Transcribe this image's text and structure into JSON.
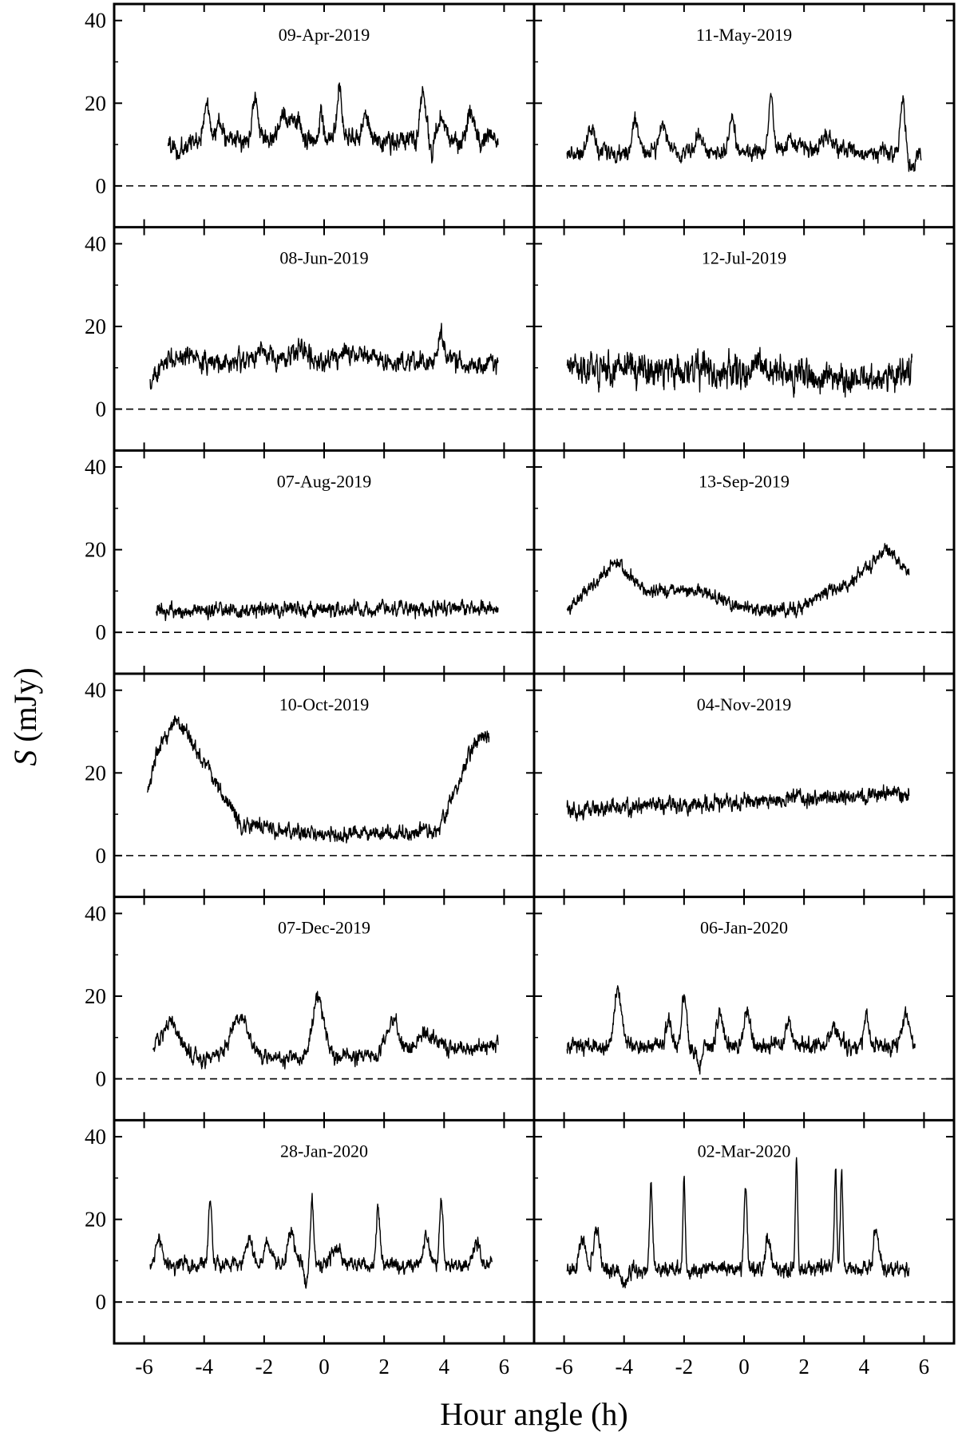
{
  "figure": {
    "ylabel_italic": "S",
    "ylabel_rest": " (mJy)",
    "xlabel": "Hour angle (h)"
  },
  "chart_data": {
    "type": "line",
    "layout": "6 rows x 2 columns, shared axes",
    "xlabel": "Hour angle (h)",
    "ylabel": "S (mJy)",
    "xlim": [
      -7,
      7
    ],
    "ylim": [
      -10,
      44
    ],
    "x_ticks": [
      -6,
      -4,
      -2,
      0,
      2,
      4,
      6
    ],
    "y_ticks": [
      0,
      20,
      40
    ],
    "zero_reference": "dashed line at S = 0",
    "colors": {
      "line": "#000000",
      "frame": "#000000"
    },
    "panels": [
      {
        "label": "09-Apr-2019",
        "x_range": [
          -5.2,
          5.8
        ],
        "baseline": 11,
        "noise": 1.8,
        "trend": [],
        "peaks": [
          [
            -3.9,
            8,
            0.12
          ],
          [
            -3.5,
            4,
            0.1
          ],
          [
            -2.3,
            10,
            0.1
          ],
          [
            -1.3,
            5,
            0.2
          ],
          [
            -0.9,
            4,
            0.15
          ],
          [
            0.5,
            12,
            0.08
          ],
          [
            -0.1,
            6,
            0.08
          ],
          [
            1.4,
            5,
            0.15
          ],
          [
            3.3,
            11,
            0.1
          ],
          [
            3.9,
            5,
            0.15
          ],
          [
            4.9,
            7,
            0.12
          ],
          [
            -4.8,
            -3,
            0.2
          ],
          [
            3.6,
            -5,
            0.06
          ]
        ]
      },
      {
        "label": "11-May-2019",
        "x_range": [
          -5.9,
          5.9
        ],
        "baseline": 8,
        "noise": 1.5,
        "trend": [],
        "peaks": [
          [
            -5.1,
            6,
            0.12
          ],
          [
            -3.6,
            7,
            0.12
          ],
          [
            -2.7,
            6,
            0.15
          ],
          [
            -1.5,
            4,
            0.15
          ],
          [
            -0.4,
            9,
            0.08
          ],
          [
            0.9,
            13,
            0.08
          ],
          [
            1.6,
            2,
            0.4
          ],
          [
            2.8,
            4,
            0.2
          ],
          [
            5.3,
            12,
            0.08
          ],
          [
            5.6,
            -3,
            0.15
          ]
        ]
      },
      {
        "label": "08-Jun-2019",
        "x_range": [
          -5.8,
          5.8
        ],
        "baseline": 11,
        "noise": 1.8,
        "trend": [
          [
            -5.8,
            6
          ],
          [
            -5.3,
            11
          ],
          [
            5.8,
            11
          ]
        ],
        "peaks": [
          [
            -4.6,
            2,
            0.4
          ],
          [
            -2,
            3,
            0.3
          ],
          [
            -0.8,
            4,
            0.3
          ],
          [
            0.6,
            2,
            0.4
          ],
          [
            1.4,
            2,
            0.4
          ],
          [
            3.9,
            6,
            0.12
          ]
        ]
      },
      {
        "label": "12-Jul-2019",
        "x_range": [
          -5.9,
          5.6
        ],
        "baseline": 9,
        "noise": 2.8,
        "trend": [
          [
            -5.9,
            10
          ],
          [
            0,
            9
          ],
          [
            0.5,
            12
          ],
          [
            1,
            9
          ],
          [
            3,
            7
          ],
          [
            5.6,
            9
          ]
        ],
        "peaks": []
      },
      {
        "label": "07-Aug-2019",
        "x_range": [
          -5.6,
          5.8
        ],
        "baseline": 5,
        "noise": 1.3,
        "trend": [
          [
            -5.6,
            5
          ],
          [
            5.8,
            6
          ]
        ],
        "peaks": []
      },
      {
        "label": "13-Sep-2019",
        "x_range": [
          -5.9,
          5.5
        ],
        "baseline": 10,
        "noise": 1.2,
        "trend": [
          [
            -5.9,
            5
          ],
          [
            -4.3,
            17
          ],
          [
            -3.3,
            10
          ],
          [
            -1.5,
            10
          ],
          [
            0,
            6
          ],
          [
            1.5,
            5
          ],
          [
            3.5,
            12
          ],
          [
            4.8,
            20
          ],
          [
            5.5,
            14
          ]
        ],
        "peaks": []
      },
      {
        "label": "10-Oct-2019",
        "x_range": [
          -5.9,
          5.5
        ],
        "baseline": 6,
        "noise": 1.4,
        "trend": [
          [
            -5.9,
            14
          ],
          [
            -5.6,
            24
          ],
          [
            -5,
            32
          ],
          [
            -4.6,
            30
          ],
          [
            -3.5,
            16
          ],
          [
            -2.8,
            8
          ],
          [
            -1.5,
            6
          ],
          [
            0,
            5
          ],
          [
            2,
            5
          ],
          [
            3.8,
            6
          ],
          [
            4.5,
            18
          ],
          [
            5,
            27
          ],
          [
            5.5,
            29
          ]
        ],
        "peaks": []
      },
      {
        "label": "04-Nov-2019",
        "x_range": [
          -5.9,
          5.5
        ],
        "baseline": 12,
        "noise": 1.5,
        "trend": [
          [
            -5.9,
            11
          ],
          [
            0,
            13
          ],
          [
            5.5,
            15
          ]
        ],
        "peaks": []
      },
      {
        "label": "07-Dec-2019",
        "x_range": [
          -5.7,
          5.8
        ],
        "baseline": 7,
        "noise": 1.4,
        "trend": [
          [
            -5.7,
            6
          ],
          [
            -4,
            5
          ],
          [
            0,
            5
          ],
          [
            5.8,
            8
          ]
        ],
        "peaks": [
          [
            -5.1,
            8,
            0.3
          ],
          [
            -2.8,
            10,
            0.3
          ],
          [
            -0.2,
            14,
            0.2
          ],
          [
            2.3,
            8,
            0.2
          ],
          [
            3.4,
            4,
            0.3
          ]
        ]
      },
      {
        "label": "06-Jan-2020",
        "x_range": [
          -5.9,
          5.7
        ],
        "baseline": 8,
        "noise": 1.5,
        "trend": [],
        "peaks": [
          [
            -4.2,
            14,
            0.12
          ],
          [
            -2.5,
            6,
            0.1
          ],
          [
            -2,
            12,
            0.08
          ],
          [
            -0.8,
            8,
            0.1
          ],
          [
            0.1,
            8,
            0.1
          ],
          [
            1.5,
            6,
            0.1
          ],
          [
            3.0,
            4,
            0.15
          ],
          [
            4.1,
            6,
            0.1
          ],
          [
            5.4,
            7,
            0.12
          ],
          [
            -1.5,
            -5,
            0.08
          ]
        ]
      },
      {
        "label": "28-Jan-2020",
        "x_range": [
          -5.8,
          5.6
        ],
        "baseline": 9,
        "noise": 1.3,
        "trend": [],
        "peaks": [
          [
            -5.5,
            6,
            0.1
          ],
          [
            -3.8,
            15,
            0.06
          ],
          [
            -2.5,
            6,
            0.12
          ],
          [
            -1.9,
            5,
            0.1
          ],
          [
            -1.1,
            8,
            0.1
          ],
          [
            -0.4,
            15,
            0.06
          ],
          [
            0.4,
            4,
            0.15
          ],
          [
            1.8,
            14,
            0.06
          ],
          [
            3.4,
            7,
            0.1
          ],
          [
            3.9,
            16,
            0.06
          ],
          [
            5.1,
            5,
            0.1
          ],
          [
            -0.6,
            -5,
            0.06
          ]
        ]
      },
      {
        "label": "02-Mar-2020",
        "x_range": [
          -5.9,
          5.5
        ],
        "baseline": 8,
        "noise": 1.4,
        "trend": [],
        "peaks": [
          [
            -5.4,
            8,
            0.1
          ],
          [
            -4.9,
            10,
            0.1
          ],
          [
            -3.1,
            20,
            0.05
          ],
          [
            -2.0,
            22,
            0.04
          ],
          [
            0.05,
            20,
            0.05
          ],
          [
            0.8,
            8,
            0.08
          ],
          [
            1.75,
            26,
            0.04
          ],
          [
            3.05,
            24,
            0.04
          ],
          [
            3.25,
            24,
            0.04
          ],
          [
            4.4,
            10,
            0.08
          ],
          [
            -4.0,
            -3,
            0.1
          ]
        ]
      }
    ]
  }
}
